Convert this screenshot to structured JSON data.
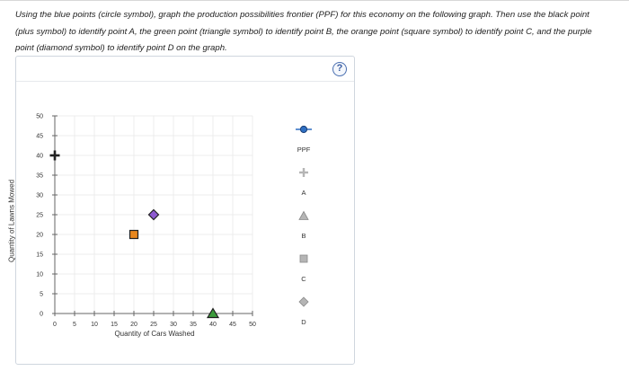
{
  "instructions": "Using the blue points (circle symbol), graph the production possibilities frontier (PPF) for this economy on the following graph. Then use the black point (plus symbol) to identify point A, the green point (triangle symbol) to identify point B, the orange point (square symbol) to identify point C, and the purple point (diamond symbol) to identify point D on the graph.",
  "help_label": "?",
  "chart_data": {
    "type": "scatter",
    "xlabel": "Quantity of Cars Washed",
    "ylabel": "Quantity of Lawns Mowed",
    "xlim": [
      0,
      50
    ],
    "ylim": [
      0,
      50
    ],
    "xticks": [
      "0",
      "5",
      "10",
      "15",
      "20",
      "25",
      "30",
      "35",
      "40",
      "45",
      "50"
    ],
    "yticks": [
      "0",
      "5",
      "10",
      "15",
      "20",
      "25",
      "30",
      "35",
      "40",
      "45",
      "50"
    ],
    "grid": true,
    "points": [
      {
        "symbol": "plus",
        "color": "#222222",
        "x": 0,
        "y": 40
      },
      {
        "symbol": "triangle",
        "color": "#3c9b3c",
        "x": 40,
        "y": 0
      },
      {
        "symbol": "square",
        "color": "#e8871e",
        "x": 20,
        "y": 20
      },
      {
        "symbol": "diamond",
        "color": "#8e5bd1",
        "x": 25,
        "y": 25
      }
    ]
  },
  "palette": {
    "items": [
      {
        "label": "PPF",
        "icon": "circle-line-icon",
        "color": "#2f6fc2"
      },
      {
        "label": "A",
        "icon": "plus-icon",
        "color": "#b5b5b5"
      },
      {
        "label": "B",
        "icon": "triangle-icon",
        "color": "#b5b5b5"
      },
      {
        "label": "C",
        "icon": "square-icon",
        "color": "#b5b5b5"
      },
      {
        "label": "D",
        "icon": "diamond-icon",
        "color": "#b5b5b5"
      }
    ]
  }
}
